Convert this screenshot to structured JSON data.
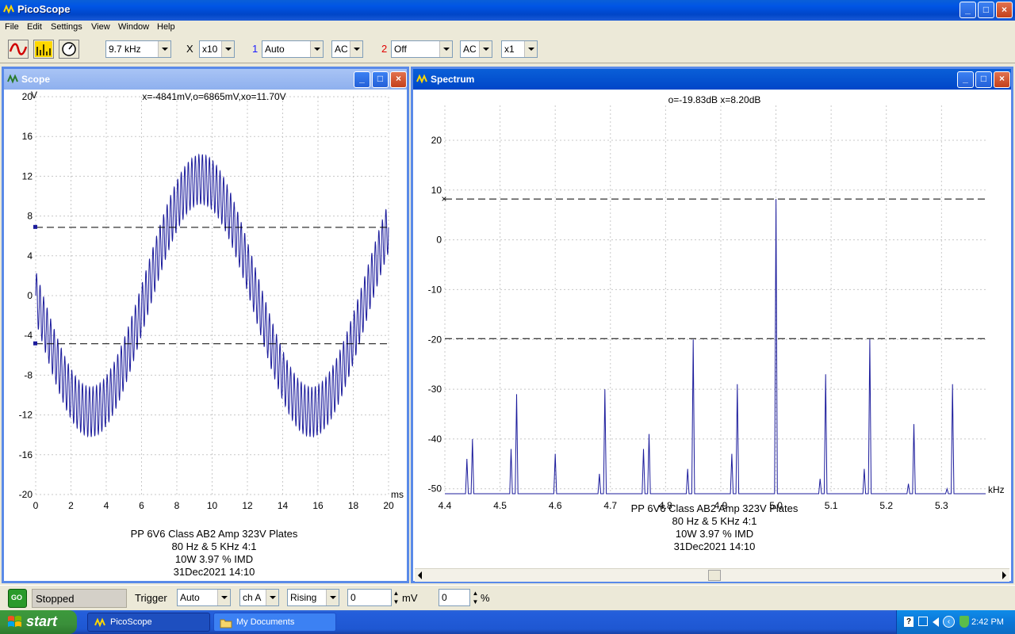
{
  "app": {
    "title": "PicoScope"
  },
  "menu": [
    "File",
    "Edit",
    "Settings",
    "View",
    "Window",
    "Help"
  ],
  "toolbar": {
    "timebase": "9.7 kHz",
    "x_label": "X",
    "multiplier": "x10",
    "ch1_label": "1",
    "ch1_range": "Auto",
    "ch1_coupling": "AC",
    "ch2_label": "2",
    "ch2_range": "Off",
    "ch2_coupling": "AC",
    "ch2_mult": "x1",
    "ch1_color": "#1a1aff",
    "ch2_color": "#e00000"
  },
  "scope": {
    "title": "Scope",
    "y_unit": "V",
    "x_unit": "ms",
    "readout": "x=-4841mV,o=6865mV,xo=11.70V",
    "yticks": [
      "20",
      "16",
      "12",
      "8",
      "4",
      "0",
      "-4",
      "-8",
      "-12",
      "-16",
      "-20"
    ],
    "xticks": [
      "0",
      "2",
      "4",
      "6",
      "8",
      "10",
      "12",
      "14",
      "16",
      "18",
      "20"
    ],
    "cursor_o_v": 6.865,
    "cursor_x_v": -4.841,
    "caption": [
      "PP 6V6 Class AB2 Amp 323V Plates",
      "80 Hz & 5 KHz 4:1",
      "10W 3.97 % IMD",
      "31Dec2021  14:10"
    ]
  },
  "spectrum": {
    "title": "Spectrum",
    "x_unit": "kHz",
    "readout": "o=-19.83dB  x=8.20dB",
    "yticks": [
      "20",
      "10",
      "0",
      "-10",
      "-20",
      "-30",
      "-40",
      "-50"
    ],
    "xticks": [
      "4.4",
      "4.5",
      "4.6",
      "4.7",
      "4.8",
      "4.9",
      "5.0",
      "5.1",
      "5.2",
      "5.3"
    ],
    "cursor_o_db": -19.83,
    "cursor_x_db": 8.2,
    "caption": [
      "PP 6V6 Class AB2 Amp 323V Plates",
      "80 Hz & 5 KHz 4:1",
      "10W 3.97 % IMD",
      "31Dec2021  14:10"
    ]
  },
  "chart_data": [
    {
      "type": "line",
      "title": "Scope",
      "xlabel": "ms",
      "ylabel": "V",
      "xlim": [
        0,
        20
      ],
      "ylim": [
        -20,
        20
      ],
      "grid": true,
      "series": [
        {
          "name": "ch A",
          "description_values": {
            "low_freq_amplitude_v": 11.7,
            "low_freq_hz": 80,
            "high_freq_amplitude_v": 2.5,
            "high_freq_khz": 5,
            "offset_v": 0
          }
        }
      ]
    },
    {
      "type": "line",
      "title": "Spectrum",
      "xlabel": "kHz",
      "ylabel": "",
      "xlim": [
        4.4,
        5.38
      ],
      "ylim": [
        -51,
        27
      ],
      "grid": true,
      "series": [
        {
          "name": "ch A",
          "peaks_khz": [
            4.44,
            4.45,
            4.52,
            4.53,
            4.6,
            4.68,
            4.69,
            4.76,
            4.77,
            4.84,
            4.85,
            4.92,
            4.93,
            5.0,
            5.08,
            5.09,
            5.16,
            5.17,
            5.24,
            5.25,
            5.31,
            5.32
          ],
          "peaks_db": [
            -44,
            -40,
            -42,
            -31,
            -43,
            -47,
            -30,
            -42,
            -39,
            -46,
            -20,
            -43,
            -29,
            8.2,
            -48,
            -27,
            -46,
            -20,
            -49,
            -37,
            -50,
            -29
          ]
        }
      ]
    }
  ],
  "status": {
    "go": "GO",
    "state": "Stopped",
    "trigger_label": "Trigger",
    "trigger_mode": "Auto",
    "trigger_channel": "ch A",
    "trigger_edge": "Rising",
    "level": "0",
    "level_unit": "mV",
    "delay": "0",
    "delay_unit": "%"
  },
  "taskbar": {
    "start": "start",
    "items": [
      "PicoScope",
      "My Documents"
    ],
    "clock": "2:42 PM"
  }
}
